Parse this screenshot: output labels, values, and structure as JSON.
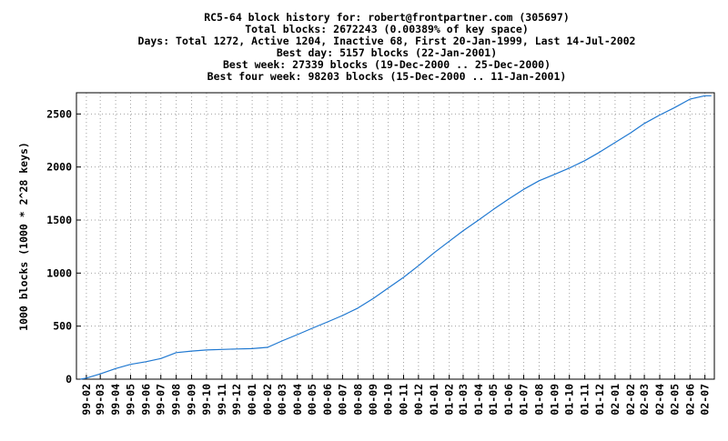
{
  "chart_data": {
    "type": "line",
    "title_lines": [
      "RC5-64 block history for: robert@frontpartner.com (305697)",
      "Total blocks: 2672243 (0.00389% of key space)",
      "Days: Total 1272,  Active 1204, Inactive 68, First 20-Jan-1999, Last 14-Jul-2002",
      "Best day: 5157 blocks (22-Jan-2001)",
      "Best week: 27339 blocks (19-Dec-2000 .. 25-Dec-2000)",
      "Best four week: 98203 blocks (15-Dec-2000 .. 11-Jan-2001)"
    ],
    "xlabel": "",
    "ylabel": "1000 blocks (1000 * 2^28 keys)",
    "ylim": [
      0,
      2700
    ],
    "yticks": [
      0,
      500,
      1000,
      1500,
      2000,
      2500
    ],
    "ytick_labels": [
      "0",
      "500",
      "1000",
      "1500",
      "2000",
      "2500"
    ],
    "xtick_labels": [
      "99-02",
      "99-03",
      "99-04",
      "99-05",
      "99-06",
      "99-07",
      "99-08",
      "99-09",
      "99-10",
      "99-11",
      "99-12",
      "00-01",
      "00-02",
      "00-03",
      "00-04",
      "00-05",
      "00-06",
      "00-07",
      "00-08",
      "00-09",
      "00-10",
      "00-11",
      "00-12",
      "01-01",
      "01-02",
      "01-03",
      "01-04",
      "01-05",
      "01-06",
      "01-07",
      "01-08",
      "01-09",
      "01-10",
      "01-11",
      "01-12",
      "02-01",
      "02-02",
      "02-03",
      "02-04",
      "02-05",
      "02-06",
      "02-07"
    ],
    "grid": true,
    "line_color": "#1f78d1",
    "series": [
      {
        "x": [
          "1999-01-20",
          "1999-02-01",
          "1999-03-01",
          "1999-04-01",
          "1999-05-01",
          "1999-06-01",
          "1999-07-01",
          "1999-08-01",
          "1999-09-01",
          "1999-10-01",
          "1999-11-01",
          "1999-12-01",
          "2000-01-01",
          "2000-02-01",
          "2000-03-01",
          "2000-04-01",
          "2000-05-01",
          "2000-06-01",
          "2000-07-01",
          "2000-08-01",
          "2000-09-01",
          "2000-10-01",
          "2000-11-01",
          "2000-12-01",
          "2001-01-01",
          "2001-02-01",
          "2001-03-01",
          "2001-04-01",
          "2001-05-01",
          "2001-06-01",
          "2001-07-01",
          "2001-08-01",
          "2001-09-01",
          "2001-10-01",
          "2001-11-01",
          "2001-12-01",
          "2002-01-01",
          "2002-02-01",
          "2002-03-01",
          "2002-04-01",
          "2002-05-01",
          "2002-06-01",
          "2002-07-01",
          "2002-07-14"
        ],
        "values": [
          0,
          10,
          50,
          100,
          140,
          165,
          195,
          250,
          265,
          275,
          280,
          285,
          288,
          300,
          360,
          420,
          480,
          540,
          600,
          670,
          760,
          860,
          960,
          1070,
          1190,
          1300,
          1400,
          1500,
          1600,
          1700,
          1790,
          1870,
          1930,
          1990,
          2060,
          2140,
          2230,
          2320,
          2410,
          2490,
          2560,
          2640,
          2672,
          2672
        ]
      }
    ]
  }
}
